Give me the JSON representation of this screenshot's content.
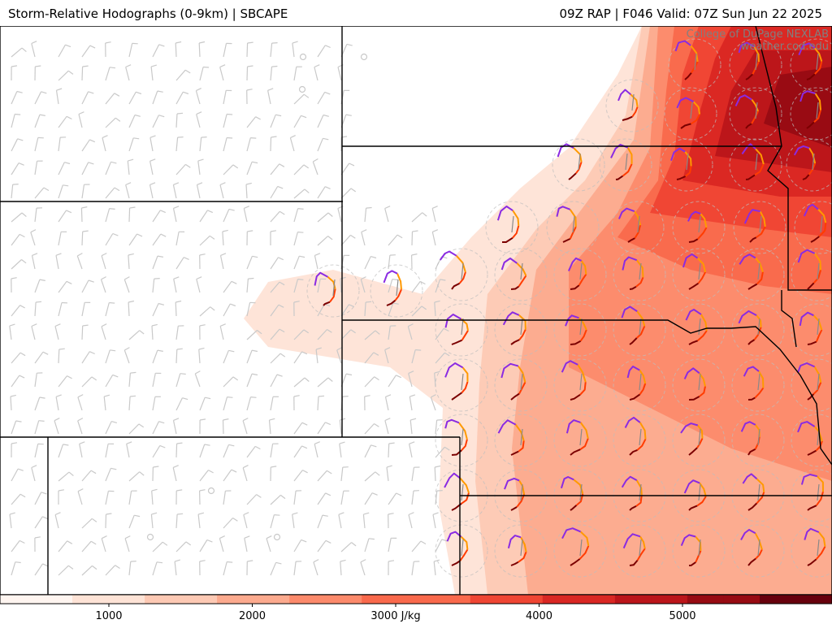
{
  "header": {
    "title_left": "Storm-Relative Hodographs (0-9km) | SBCAPE",
    "title_right": "09Z RAP | F046 Valid: 07Z Sun Jun 22 2025"
  },
  "credit": {
    "line1": "College of DuPage NEXLAB",
    "line2": "weather.cod.edu"
  },
  "colorbar": {
    "ticks": [
      {
        "value": 1000,
        "label": "1000"
      },
      {
        "value": 2000,
        "label": "2000"
      },
      {
        "value": 3000,
        "label": "3000 J/kg"
      },
      {
        "value": 4000,
        "label": "4000"
      },
      {
        "value": 5000,
        "label": "5000"
      }
    ],
    "range": [
      250,
      6000
    ],
    "colors": [
      "#fff5f0",
      "#fee3d6",
      "#fdc9b4",
      "#fcaa8e",
      "#fc8a6b",
      "#f9694c",
      "#ef4533",
      "#d92723",
      "#bb151a",
      "#970b13",
      "#67000d"
    ]
  },
  "legend_colors": {
    "hodo_low": "#7b0000",
    "hodo_mid1": "#ff3c00",
    "hodo_mid2": "#ff9900",
    "hodo_high": "#8a2be2",
    "barb": "#c8c8c8",
    "border": "#000000"
  }
}
